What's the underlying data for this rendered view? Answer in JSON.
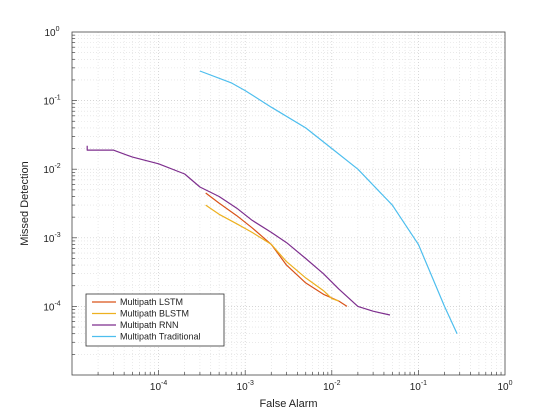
{
  "chart_data": {
    "type": "line",
    "xscale": "log",
    "yscale": "log",
    "xlabel": "False Alarm",
    "ylabel": "Missed Detection",
    "xlim": [
      1e-05,
      1
    ],
    "ylim": [
      1e-05,
      1
    ],
    "grid": true,
    "minor_grid": true,
    "legend_position": "bottom-left",
    "x_tick_labels": [
      {
        "base": "10",
        "exp": "-4"
      },
      {
        "base": "10",
        "exp": "-3"
      },
      {
        "base": "10",
        "exp": "-2"
      },
      {
        "base": "10",
        "exp": "-1"
      },
      {
        "base": "10",
        "exp": "0"
      }
    ],
    "y_tick_labels": [
      {
        "base": "10",
        "exp": "0"
      },
      {
        "base": "10",
        "exp": "-1"
      },
      {
        "base": "10",
        "exp": "-2"
      },
      {
        "base": "10",
        "exp": "-3"
      },
      {
        "base": "10",
        "exp": "-4"
      }
    ],
    "series": [
      {
        "name": "Multipath LSTM",
        "color": "#d95319",
        "x": [
          0.00035,
          0.0005,
          0.0008,
          0.0012,
          0.002,
          0.003,
          0.005,
          0.008,
          0.012,
          0.015
        ],
        "y": [
          0.0045,
          0.0032,
          0.0021,
          0.0014,
          0.0008,
          0.0004,
          0.00022,
          0.00015,
          0.00012,
          0.0001
        ]
      },
      {
        "name": "Multipath BLSTM",
        "color": "#edb120",
        "x": [
          0.00035,
          0.0005,
          0.0008,
          0.0012,
          0.002,
          0.003,
          0.005,
          0.008,
          0.01,
          0.012
        ],
        "y": [
          0.003,
          0.0022,
          0.0016,
          0.0012,
          0.0008,
          0.00045,
          0.00026,
          0.00017,
          0.00013,
          0.00012
        ]
      },
      {
        "name": "Multipath RNN",
        "color": "#7e2f8e",
        "x": [
          1.5e-05,
          1.5e-05,
          3e-05,
          5e-05,
          0.0001,
          0.0002,
          0.0003,
          0.0005,
          0.0008,
          0.0012,
          0.002,
          0.003,
          0.005,
          0.008,
          0.012,
          0.02,
          0.03,
          0.047
        ],
        "y": [
          0.022,
          0.019,
          0.019,
          0.015,
          0.012,
          0.0085,
          0.0055,
          0.004,
          0.0027,
          0.0018,
          0.0012,
          0.00085,
          0.0005,
          0.0003,
          0.00018,
          0.0001,
          8.5e-05,
          7.5e-05
        ]
      },
      {
        "name": "Multipath Traditional",
        "color": "#4dbeee",
        "x": [
          0.0003,
          0.0007,
          0.001,
          0.002,
          0.005,
          0.01,
          0.02,
          0.05,
          0.1,
          0.2,
          0.28
        ],
        "y": [
          0.27,
          0.18,
          0.14,
          0.08,
          0.04,
          0.02,
          0.01,
          0.003,
          0.0008,
          0.0001,
          4e-05
        ]
      }
    ]
  }
}
